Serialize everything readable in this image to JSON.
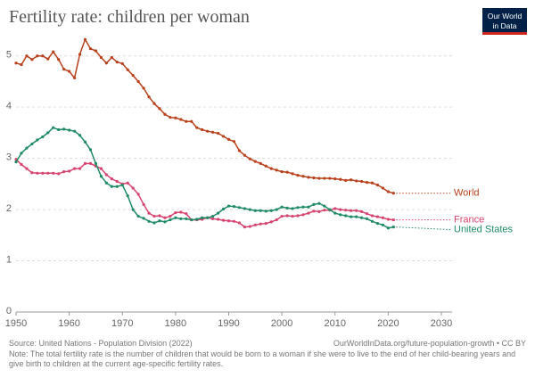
{
  "chart_data": {
    "type": "line",
    "title": "Fertility rate: children per woman",
    "logo": [
      "Our World",
      "in Data"
    ],
    "source": "Source: United Nations - Population Division (2022)",
    "url": "OurWorldInData.org/future-population-growth • CC BY",
    "note": "Note: The total fertility rate is the number of children that would be born to a woman if she were to live to the end of her child-bearing years and give birth to children at the current age-specific fertility rates.",
    "x": [
      1950,
      1951,
      1952,
      1953,
      1954,
      1955,
      1956,
      1957,
      1958,
      1959,
      1960,
      1961,
      1962,
      1963,
      1964,
      1965,
      1966,
      1967,
      1968,
      1969,
      1970,
      1971,
      1972,
      1973,
      1974,
      1975,
      1976,
      1977,
      1978,
      1979,
      1980,
      1981,
      1982,
      1983,
      1984,
      1985,
      1986,
      1987,
      1988,
      1989,
      1990,
      1991,
      1992,
      1993,
      1994,
      1995,
      1996,
      1997,
      1998,
      1999,
      2000,
      2001,
      2002,
      2003,
      2004,
      2005,
      2006,
      2007,
      2008,
      2009,
      2010,
      2011,
      2012,
      2013,
      2014,
      2015,
      2016,
      2017,
      2018,
      2019,
      2020,
      2021
    ],
    "series": [
      {
        "name": "World",
        "color": "#b8401b",
        "values": [
          4.86,
          4.83,
          5.0,
          4.93,
          5.0,
          5.0,
          4.94,
          5.08,
          4.93,
          4.74,
          4.7,
          4.57,
          5.03,
          5.32,
          5.14,
          5.1,
          4.97,
          4.86,
          4.97,
          4.88,
          4.85,
          4.73,
          4.62,
          4.5,
          4.37,
          4.2,
          4.07,
          3.97,
          3.86,
          3.8,
          3.79,
          3.76,
          3.72,
          3.72,
          3.6,
          3.56,
          3.53,
          3.51,
          3.49,
          3.43,
          3.37,
          3.33,
          3.15,
          3.06,
          2.99,
          2.94,
          2.9,
          2.85,
          2.8,
          2.77,
          2.74,
          2.73,
          2.7,
          2.67,
          2.65,
          2.63,
          2.62,
          2.61,
          2.61,
          2.61,
          2.6,
          2.59,
          2.57,
          2.58,
          2.56,
          2.55,
          2.53,
          2.52,
          2.48,
          2.42,
          2.35,
          2.32
        ]
      },
      {
        "name": "France",
        "color": "#d6436e",
        "values": [
          2.98,
          2.88,
          2.8,
          2.72,
          2.71,
          2.71,
          2.71,
          2.71,
          2.7,
          2.74,
          2.75,
          2.8,
          2.8,
          2.9,
          2.9,
          2.85,
          2.8,
          2.68,
          2.6,
          2.55,
          2.5,
          2.52,
          2.42,
          2.3,
          2.1,
          1.93,
          1.87,
          1.88,
          1.84,
          1.87,
          1.94,
          1.95,
          1.92,
          1.8,
          1.8,
          1.81,
          1.84,
          1.82,
          1.81,
          1.79,
          1.78,
          1.77,
          1.74,
          1.66,
          1.67,
          1.7,
          1.72,
          1.73,
          1.76,
          1.8,
          1.87,
          1.88,
          1.87,
          1.88,
          1.9,
          1.93,
          1.97,
          1.96,
          1.99,
          1.99,
          2.02,
          2.0,
          1.99,
          1.98,
          1.98,
          1.96,
          1.92,
          1.88,
          1.86,
          1.84,
          1.81,
          1.8
        ]
      },
      {
        "name": "United States",
        "color": "#1f8a66",
        "values": [
          2.93,
          3.1,
          3.2,
          3.28,
          3.36,
          3.42,
          3.5,
          3.6,
          3.56,
          3.57,
          3.55,
          3.53,
          3.45,
          3.32,
          3.17,
          2.9,
          2.65,
          2.52,
          2.45,
          2.45,
          2.48,
          2.27,
          2.0,
          1.87,
          1.83,
          1.77,
          1.74,
          1.78,
          1.76,
          1.8,
          1.84,
          1.82,
          1.82,
          1.8,
          1.81,
          1.84,
          1.84,
          1.87,
          1.93,
          2.01,
          2.07,
          2.06,
          2.04,
          2.02,
          2.0,
          1.98,
          1.98,
          1.97,
          1.98,
          2.0,
          2.05,
          2.03,
          2.02,
          2.04,
          2.05,
          2.05,
          2.1,
          2.12,
          2.07,
          2.0,
          1.93,
          1.9,
          1.88,
          1.86,
          1.86,
          1.84,
          1.82,
          1.77,
          1.73,
          1.7,
          1.64,
          1.66
        ]
      }
    ],
    "xlim": [
      1950,
      2030
    ],
    "xticks": [
      1950,
      1960,
      1970,
      1980,
      1990,
      2000,
      2010,
      2020,
      2030
    ],
    "ylim": [
      0,
      5.5
    ],
    "yticks": [
      0,
      1,
      2,
      3,
      4,
      5
    ],
    "grid": true
  }
}
